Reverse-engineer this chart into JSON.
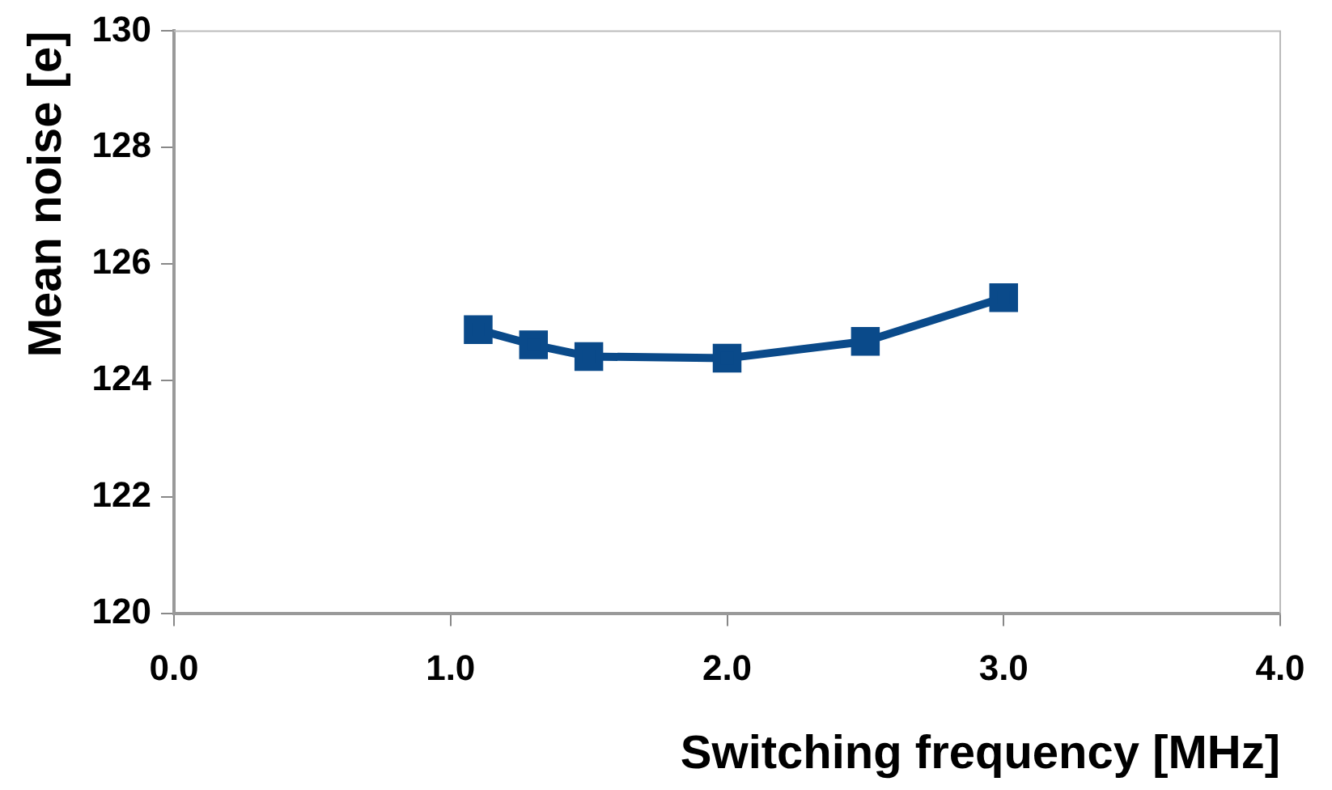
{
  "chart_data": {
    "type": "line",
    "xlabel": "Switching frequency [MHz]",
    "ylabel": "Mean noise [e]",
    "x": [
      1.1,
      1.3,
      1.5,
      2.0,
      2.5,
      3.0
    ],
    "series": [
      {
        "color": "#0a4a8a",
        "values": [
          124.87,
          124.61,
          124.41,
          124.38,
          124.67,
          125.42
        ]
      }
    ],
    "xlim": [
      0,
      4
    ],
    "xticks": [
      {
        "value": 0,
        "label": "0.0"
      },
      {
        "value": 1,
        "label": "1.0"
      },
      {
        "value": 2,
        "label": "2.0"
      },
      {
        "value": 3,
        "label": "3.0"
      },
      {
        "value": 4,
        "label": "4.0"
      }
    ],
    "ylim": [
      120,
      130
    ],
    "yticks": [
      120,
      122,
      124,
      126,
      128,
      130
    ],
    "grid": false,
    "legend": false,
    "marker": "square",
    "line_style": "solid"
  }
}
